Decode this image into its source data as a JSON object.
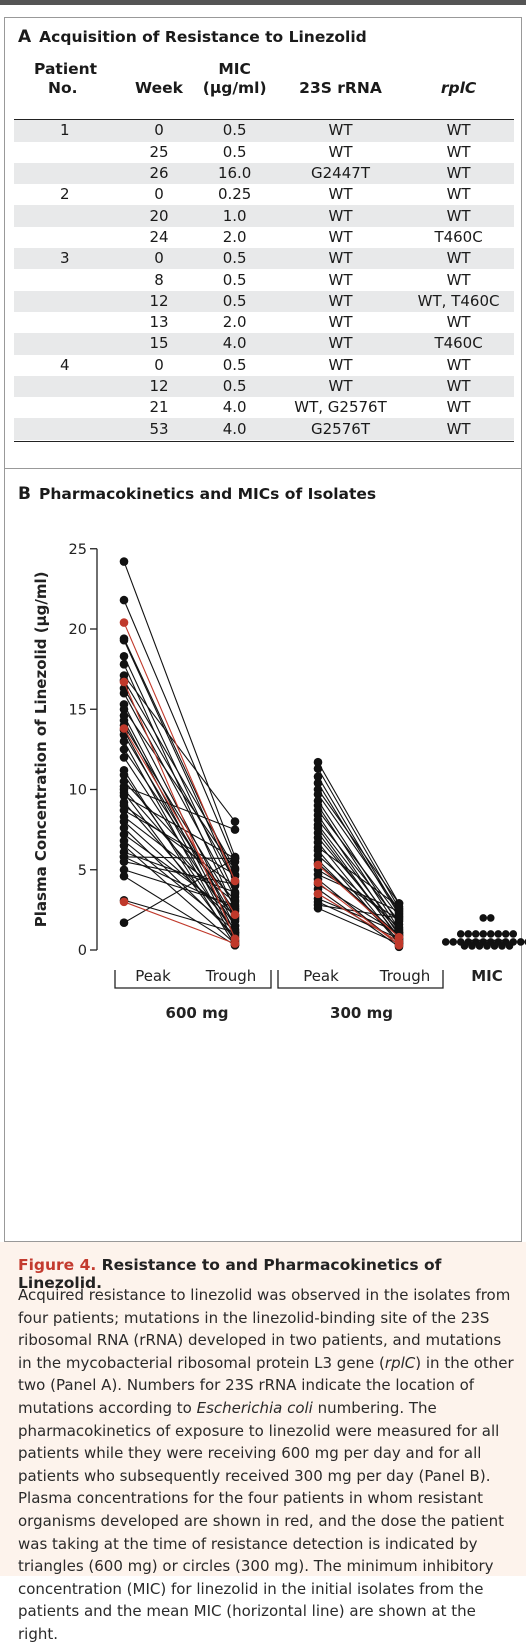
{
  "panel_a": {
    "letter": "A",
    "title": "Acquisition of Resistance to Linezolid",
    "headers": {
      "patient": [
        "Patient",
        "No."
      ],
      "week": "Week",
      "mic": [
        "MIC",
        "(μg/ml)"
      ],
      "rrna": "23S rRNA",
      "rplc": "rplC"
    },
    "rows": [
      {
        "patient": "1",
        "week": "0",
        "mic": "0.5",
        "rrna": "WT",
        "rplc": "WT"
      },
      {
        "patient": "",
        "week": "25",
        "mic": "0.5",
        "rrna": "WT",
        "rplc": "WT"
      },
      {
        "patient": "",
        "week": "26",
        "mic": "16.0",
        "rrna": "G2447T",
        "rplc": "WT"
      },
      {
        "patient": "2",
        "week": "0",
        "mic": "0.25",
        "rrna": "WT",
        "rplc": "WT"
      },
      {
        "patient": "",
        "week": "20",
        "mic": "1.0",
        "rrna": "WT",
        "rplc": "WT"
      },
      {
        "patient": "",
        "week": "24",
        "mic": "2.0",
        "rrna": "WT",
        "rplc": "T460C"
      },
      {
        "patient": "3",
        "week": "0",
        "mic": "0.5",
        "rrna": "WT",
        "rplc": "WT"
      },
      {
        "patient": "",
        "week": "8",
        "mic": "0.5",
        "rrna": "WT",
        "rplc": "WT"
      },
      {
        "patient": "",
        "week": "12",
        "mic": "0.5",
        "rrna": "WT",
        "rplc": "WT, T460C"
      },
      {
        "patient": "",
        "week": "13",
        "mic": "2.0",
        "rrna": "WT",
        "rplc": "WT"
      },
      {
        "patient": "",
        "week": "15",
        "mic": "4.0",
        "rrna": "WT",
        "rplc": "T460C"
      },
      {
        "patient": "4",
        "week": "0",
        "mic": "0.5",
        "rrna": "WT",
        "rplc": "WT"
      },
      {
        "patient": "",
        "week": "12",
        "mic": "0.5",
        "rrna": "WT",
        "rplc": "WT"
      },
      {
        "patient": "",
        "week": "21",
        "mic": "4.0",
        "rrna": "WT, G2576T",
        "rplc": "WT"
      },
      {
        "patient": "",
        "week": "53",
        "mic": "4.0",
        "rrna": "G2576T",
        "rplc": "WT"
      }
    ]
  },
  "panel_b": {
    "letter": "B",
    "title": "Pharmacokinetics and MICs of Isolates"
  },
  "chart_data": {
    "type": "scatter",
    "ylabel": "Plasma Concentration of Linezolid (μg/ml)",
    "ylim": [
      0,
      25
    ],
    "yticks": [
      "0",
      "5",
      "10",
      "15",
      "20",
      "25"
    ],
    "categories": [
      "Peak",
      "Trough",
      "Peak",
      "Trough",
      "MIC"
    ],
    "groups": [
      "600 mg",
      "300 mg"
    ],
    "series_colors": {
      "all": "#111111",
      "resistant": "#c0392b"
    },
    "dose_600_pairs": [
      [
        24.2,
        5.8
      ],
      [
        21.8,
        5.5
      ],
      [
        19.4,
        4.6
      ],
      [
        19.3,
        4.2
      ],
      [
        18.3,
        3.5
      ],
      [
        17.8,
        2.5
      ],
      [
        17.1,
        8.0
      ],
      [
        16.8,
        5.1
      ],
      [
        16.3,
        4.3
      ],
      [
        16.0,
        3.3
      ],
      [
        15.3,
        2.0
      ],
      [
        15.0,
        5.0
      ],
      [
        14.6,
        1.5
      ],
      [
        14.3,
        1.1
      ],
      [
        14.0,
        2.7
      ],
      [
        13.7,
        0.8
      ],
      [
        13.4,
        1.9
      ],
      [
        13.0,
        0.5
      ],
      [
        12.5,
        2.4
      ],
      [
        12.0,
        1.5
      ],
      [
        11.2,
        0.3
      ],
      [
        10.9,
        1.0
      ],
      [
        10.5,
        3.1
      ],
      [
        10.2,
        7.5
      ],
      [
        10.0,
        2.1
      ],
      [
        9.8,
        0.6
      ],
      [
        9.6,
        5.7
      ],
      [
        9.2,
        1.3
      ],
      [
        9.0,
        4.0
      ],
      [
        8.7,
        4.7
      ],
      [
        8.3,
        3.0
      ],
      [
        8.0,
        1.8
      ],
      [
        7.6,
        0.9
      ],
      [
        7.2,
        2.2
      ],
      [
        6.8,
        1.2
      ],
      [
        6.5,
        0.4
      ],
      [
        6.1,
        3.6
      ],
      [
        5.8,
        5.7
      ],
      [
        5.8,
        2.6
      ],
      [
        5.5,
        4.1
      ],
      [
        5.0,
        2.8
      ],
      [
        4.6,
        0.3
      ],
      [
        3.1,
        1.1
      ],
      [
        1.7,
        5.7
      ]
    ],
    "dose_600_resistant_pairs": [
      [
        20.4,
        4.3
      ],
      [
        16.7,
        0.7
      ],
      [
        13.8,
        2.2
      ],
      [
        3.0,
        0.4
      ]
    ],
    "dose_300_pairs": [
      [
        11.7,
        2.9
      ],
      [
        11.3,
        2.6
      ],
      [
        10.8,
        2.3
      ],
      [
        10.4,
        2.2
      ],
      [
        10.0,
        2.9
      ],
      [
        9.7,
        2.5
      ],
      [
        9.3,
        1.6
      ],
      [
        9.0,
        1.3
      ],
      [
        8.7,
        2.1
      ],
      [
        8.4,
        0.9
      ],
      [
        8.1,
        1.8
      ],
      [
        7.8,
        1.2
      ],
      [
        7.6,
        0.7
      ],
      [
        7.3,
        0.8
      ],
      [
        7.0,
        1.1
      ],
      [
        6.7,
        0.5
      ],
      [
        6.4,
        2.7
      ],
      [
        6.2,
        0.4
      ],
      [
        5.9,
        1.4
      ],
      [
        5.6,
        0.6
      ],
      [
        5.4,
        0.9
      ],
      [
        5.0,
        1.9
      ],
      [
        4.7,
        2.4
      ],
      [
        4.4,
        0.3
      ],
      [
        4.1,
        1.0
      ],
      [
        3.8,
        0.2
      ],
      [
        3.5,
        0.5
      ],
      [
        3.2,
        1.1
      ],
      [
        3.0,
        0.7
      ],
      [
        2.8,
        2.0
      ],
      [
        2.6,
        0.4
      ]
    ],
    "dose_300_resistant_pairs": [
      [
        5.3,
        0.8
      ],
      [
        4.2,
        0.3
      ],
      [
        3.5,
        0.5
      ]
    ],
    "mic_values": [
      2.0,
      2.0,
      1.0,
      1.0,
      1.0,
      1.0,
      1.0,
      1.0,
      1.0,
      1.0,
      0.5,
      0.5,
      0.5,
      0.5,
      0.5,
      0.5,
      0.5,
      0.5,
      0.5,
      0.5,
      0.5,
      0.5,
      0.25,
      0.25,
      0.25,
      0.25,
      0.25,
      0.25,
      0.25
    ],
    "mic_mean": 0.6
  },
  "caption": {
    "figure_label": "Figure 4.",
    "figure_title": "Resistance to and Pharmacokinetics of Linezolid.",
    "body_parts": [
      "Acquired resistance to linezolid was observed in the isolates from four patients; mutations in the linezolid-binding site of the 23S ribosomal RNA (rRNA) developed in two patients, and mutations in the mycobacterial ribosomal protein L3 gene (",
      "rplC",
      ") in the other two (Panel A). Numbers for 23S rRNA indicate the location of mutations according to ",
      "Escherichia coli",
      " numbering. The pharmacokinetics of exposure to linezolid were measured for all patients while they were receiving 600 mg per day and for all patients who subsequently received 300 mg per day (Panel B). Plasma concentrations for the four patients in whom resistant organisms developed are shown in red, and the dose the patient was taking at the time of resistance detection is indicated by triangles (600 mg) or circles (300 mg). The minimum inhibitory concentration (MIC) for linezolid in the initial isolates from the patients and the mean MIC (horizontal line) are shown at the right."
    ]
  }
}
